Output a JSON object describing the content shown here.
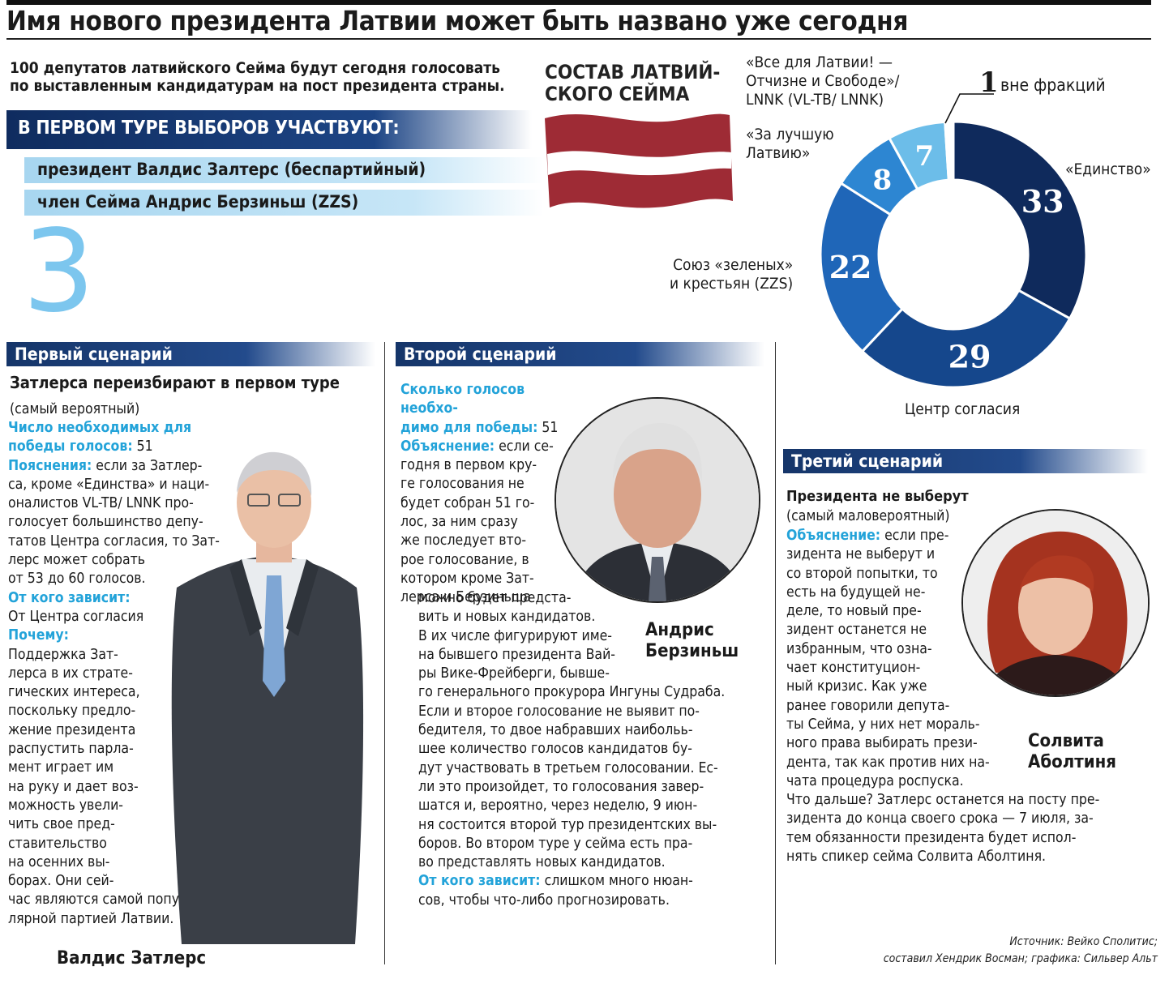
{
  "headline": "Имя нового президента Латвии может быть названо уже сегодня",
  "intro": {
    "line1": "100 депутатов латвийского Сейма будут сегодня голосовать",
    "line2": "по выставленным кандидатурам на пост президента страны."
  },
  "first_round_header": "В ПЕРВОМ ТУРЕ ВЫБОРОВ УЧАСТВУЮТ:",
  "candidates": [
    "президент Валдис Залтерс (беспартийный)",
    "член Сейма Андрис Берзиньш (ZZS)"
  ],
  "big_number": "3",
  "seim_title": {
    "line1": "СОСТАВ ЛАТВИЙ-",
    "line2": "СКОГО СЕЙМА"
  },
  "flag_colors": {
    "red": "#9e2b35",
    "white": "#ffffff"
  },
  "chart_data": {
    "type": "pie",
    "title": "СОСТАВ ЛАТВИЙСКОГО СЕЙМА",
    "slices": [
      {
        "name": "«Единство»",
        "value": 33,
        "color": "#0f2a5c"
      },
      {
        "name": "Центр согласия",
        "value": 29,
        "color": "#15478c"
      },
      {
        "name": "Союз «зеленых» и крестьян (ZZS)",
        "value": 22,
        "color": "#1f66b8"
      },
      {
        "name": "«За лучшую Латвию»",
        "value": 8,
        "color": "#2d86d2"
      },
      {
        "name": "«Все для Латвии! — Отчизне и Свободе»/ LNNK (VL-TB/ LNNK)",
        "value": 7,
        "color": "#6cbde9"
      },
      {
        "name": "вне фракций",
        "value": 1,
        "color": "#ffffff"
      }
    ],
    "total": 100
  },
  "chart_labels": {
    "vl_tb": [
      "«Все для Латвии! —",
      "Отчизне и Свободе»/",
      "LNNK (VL-TB/ LNNK)"
    ],
    "za_luchshuyu": [
      "«За лучшую",
      "Латвию»"
    ],
    "edinstvo": "«Единство»",
    "zzs": [
      "Союз «зеленых»",
      "и крестьян (ZZS)"
    ],
    "centr": "Центр согласия",
    "vne_num": "1",
    "vne_text": "вне фракций"
  },
  "scenario1": {
    "header": "Первый сценарий",
    "title": "Затлерса переизбирают в первом туре",
    "subtitle": "(самый вероятный)",
    "votes_label1": "Число необходимых для",
    "votes_label2": "победы голосов:",
    "votes_value": " 51",
    "expl_label": "Пояснения:",
    "expl_lines": [
      " если за Затлер-",
      "са, кроме «Единства» и наци-",
      "оналистов VL-TB/ LNNK про-",
      "голосует большинство депу-",
      "татов Центра согласия, то Зат-",
      "лерс может собрать",
      "от 53 до 60 голосов."
    ],
    "depends_label": "От кого зависит:",
    "depends_text": "От Центра согласия",
    "why_label": "Почему:",
    "why_lines": [
      "Поддержка Зат-",
      "лерса в их страте-",
      "гических интереса,",
      "поскольку предло-",
      "жение президента",
      "распустить парла-",
      "мент играет им",
      "на руку и дает воз-",
      "можность увели-",
      "чить свое пред-",
      "ставительство",
      "на осенних вы-",
      "борах. Они сей-",
      "час являются самой попу-",
      "лярной партией Латвии."
    ],
    "photo_caption": "Валдис Затлерс"
  },
  "scenario2": {
    "header": "Второй сценарий",
    "votes_label1": "Сколько голосов необхо-",
    "votes_label2": "димо для победы:",
    "votes_value": " 51",
    "expl_label": "Объяснение:",
    "expl_lines": [
      " если се-",
      "годня в первом кру-",
      "ге голосования не",
      "будет собран 51 го-",
      "лос, за ним сразу",
      "же последует вто-",
      "рое голосование, в",
      "котором кроме Зат-",
      "лерса и Берзиньша"
    ],
    "wide_lines": [
      "можно будет предста-",
      "вить и новых кандидатов.",
      "В их числе фигурируют име-",
      "на бывшего президента Вай-",
      "ры Вике-Фрейберги, бывше-",
      "го генерального прокурора Ингуны Судраба.",
      "Если и второе голосование не выявит по-",
      "бедителя, то двое набравших наибольь-",
      "шее количество голосов кандидатов бу-",
      "дут участвовать в третьем голосовании. Ес-",
      "ли это произойдет, то голосования завер-",
      "шатся и, вероятно, через неделю, 9 июн-",
      "ня состоится второй тур президентских вы-",
      "боров. Во втором туре у сейма есть пра-",
      "во представлять новых кандидатов."
    ],
    "depends_label": "От кого зависит:",
    "depends_lines": [
      " слишком много нюан-",
      "сов, чтобы что-либо прогнозировать."
    ],
    "photo_caption": [
      "Андрис",
      "Берзиньш"
    ]
  },
  "scenario3": {
    "header": "Третий сценарий",
    "title": "Президента не выберут",
    "subtitle": "(самый маловероятный)",
    "expl_label": "Объяснение:",
    "expl_lines": [
      " если пре-",
      "зидента не выберут и",
      "со второй попытки, то",
      "есть на будущей не-",
      "деле, то новый пре-",
      "зидент останется не",
      "избранным, что озна-",
      "чает конституцион-",
      "ный кризис. Как уже",
      "ранее говорили депута-",
      "ты Сейма, у них нет мораль-",
      "ного права выбирать прези-",
      "дента, так как против них на-",
      "чата процедура роспуска.",
      "Что дальше? Затлерс останется на посту пре-",
      "зидента до конца своего срока — 7 июля, за-",
      "тем обязанности президента будет испол-",
      "нять спикер сейма Солвита Аболтиня."
    ],
    "photo_caption": [
      "Солвита",
      "Аболтиня"
    ]
  },
  "source": {
    "line1": "Источник: Вейко Сполитис;",
    "line2": "составил Хендрик Восман; графика: Сильвер Альт"
  }
}
